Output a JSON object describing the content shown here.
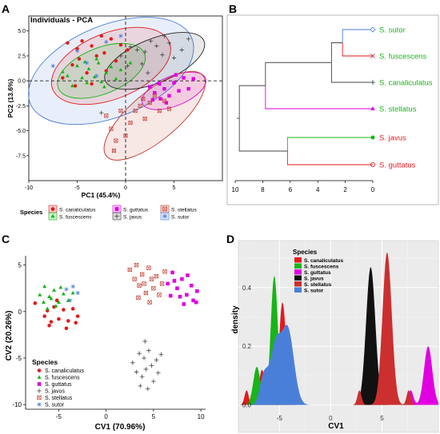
{
  "panels": {
    "A": {
      "letter": "A",
      "title": "Individuals - PCA",
      "xlabel": "PC1 (45.4%)",
      "ylabel": "PC2 (13.6%)"
    },
    "B": {
      "letter": "B"
    },
    "C": {
      "letter": "C",
      "xlabel": "CV1 (70.96%)",
      "ylabel": "CV2 (20.26%)"
    },
    "D": {
      "letter": "D",
      "xlabel": "CV1",
      "ylabel": "density"
    }
  },
  "legend_titles": {
    "A": "Species",
    "C": "Species",
    "D": "Species"
  },
  "species": [
    {
      "name": "S. canaliculatus",
      "color": "#e31a1c",
      "marker": "circle"
    },
    {
      "name": "S. fuscescens",
      "color": "#18b418",
      "marker": "triangle"
    },
    {
      "name": "S. guttatus",
      "color": "#e000e0",
      "marker": "square"
    },
    {
      "name": "S. javus",
      "color": "#444444",
      "marker": "plus"
    },
    {
      "name": "S. stellatus",
      "color": "#c0392b",
      "marker": "boxx"
    },
    {
      "name": "S. sutor",
      "color": "#4a7fd9",
      "marker": "asterisk"
    }
  ],
  "chart_data": [
    {
      "panel": "A",
      "type": "scatter",
      "title": "Individuals - PCA",
      "xlabel": "PC1 (45.4%)",
      "ylabel": "PC2 (13.6%)",
      "xlim": [
        -10,
        10
      ],
      "ylim": [
        -10,
        6.5
      ],
      "xticks": [
        -10,
        -5,
        0,
        5
      ],
      "yticks": [
        5,
        2.5,
        0,
        -2.5,
        -5,
        -7.5
      ],
      "ytick_labels": [
        "5.0",
        "2.5",
        "0.0",
        "-2.5",
        "-5.0",
        "-7.5"
      ],
      "legend_position": "bottom",
      "ellipses": [
        {
          "species": "S. sutor",
          "cx": -1.5,
          "cy": 1.0,
          "rx": 9.0,
          "ry": 4.6,
          "angle": 22
        },
        {
          "species": "S. canaliculatus",
          "cx": -1.5,
          "cy": 1.5,
          "rx": 6.5,
          "ry": 3.3,
          "angle": 22
        },
        {
          "species": "S. fuscescens",
          "cx": -2.5,
          "cy": 1.0,
          "rx": 4.8,
          "ry": 2.3,
          "angle": 22
        },
        {
          "species": "S. javus",
          "cx": 3.0,
          "cy": 2.0,
          "rx": 5.5,
          "ry": 2.2,
          "angle": 22
        },
        {
          "species": "S. guttatus",
          "cx": 5.0,
          "cy": -1.0,
          "rx": 3.5,
          "ry": 1.5,
          "angle": 22
        },
        {
          "species": "S. stellatus",
          "cx": 3.0,
          "cy": -3.5,
          "rx": 6.5,
          "ry": 2.4,
          "angle": 40
        }
      ],
      "series": [
        {
          "name": "S. canaliculatus",
          "points": [
            [
              -6,
              3.8
            ],
            [
              -5,
              3.2
            ],
            [
              -4.5,
              4.0
            ],
            [
              -3.5,
              3.5
            ],
            [
              -2.5,
              4.5
            ],
            [
              -1.5,
              4.2
            ],
            [
              -0.5,
              3.6
            ],
            [
              -3,
              2.5
            ],
            [
              -5.5,
              1.6
            ],
            [
              -2,
              1.0
            ],
            [
              -4,
              0.8
            ],
            [
              -6.5,
              0.3
            ],
            [
              -3.5,
              -0.3
            ],
            [
              -2.2,
              2.8
            ],
            [
              0.2,
              3.1
            ],
            [
              -4.8,
              2.2
            ],
            [
              -1,
              2.0
            ],
            [
              -5.2,
              -0.5
            ]
          ]
        },
        {
          "name": "S. fuscescens",
          "points": [
            [
              -6,
              0.5
            ],
            [
              -5.5,
              -0.5
            ],
            [
              -5,
              1.5
            ],
            [
              -4.5,
              0.3
            ],
            [
              -4,
              -0.2
            ],
            [
              -3.8,
              1.2
            ],
            [
              -3.2,
              0.4
            ],
            [
              -2.8,
              1.8
            ],
            [
              -2.5,
              -0.1
            ],
            [
              -2,
              0.8
            ],
            [
              -1.5,
              1.4
            ],
            [
              -1,
              0.2
            ],
            [
              -0.5,
              1.1
            ],
            [
              0.5,
              1.8
            ],
            [
              -3,
              2.2
            ],
            [
              -4.2,
              1.9
            ],
            [
              -6.5,
              0.9
            ],
            [
              -2.2,
              -0.6
            ]
          ]
        },
        {
          "name": "S. guttatus",
          "points": [
            [
              2.5,
              -0.6
            ],
            [
              3,
              -1.2
            ],
            [
              3.5,
              -0.3
            ],
            [
              4,
              -0.8
            ],
            [
              4.5,
              -1.5
            ],
            [
              5,
              -0.2
            ],
            [
              5.5,
              -1.0
            ],
            [
              6,
              0.3
            ],
            [
              6.5,
              -0.8
            ],
            [
              4.2,
              -2.2
            ],
            [
              3.6,
              -1.8
            ],
            [
              7,
              0.2
            ],
            [
              5.2,
              0.6
            ],
            [
              2.8,
              -1.9
            ]
          ]
        },
        {
          "name": "S. javus",
          "points": [
            [
              -0.5,
              2.5
            ],
            [
              0.5,
              3.4
            ],
            [
              1.2,
              3.1
            ],
            [
              2,
              2.9
            ],
            [
              2.6,
              4.0
            ],
            [
              3.2,
              3.5
            ],
            [
              3.8,
              2.6
            ],
            [
              4.5,
              3.8
            ],
            [
              5,
              2.3
            ],
            [
              5.8,
              3.1
            ],
            [
              6.5,
              4.2
            ],
            [
              1.7,
              1.7
            ],
            [
              0.2,
              1.5
            ],
            [
              4,
              4.5
            ],
            [
              2.3,
              0.8
            ],
            [
              -2.5,
              -3.2
            ]
          ]
        },
        {
          "name": "S. stellatus",
          "points": [
            [
              -2,
              -3.5
            ],
            [
              -1.5,
              -4.8
            ],
            [
              -1,
              -6.0
            ],
            [
              -0.5,
              -3.0
            ],
            [
              0,
              -5.5
            ],
            [
              0.5,
              -4.2
            ],
            [
              1,
              -3.0
            ],
            [
              1.5,
              -2.5
            ],
            [
              2,
              -3.8
            ],
            [
              2.5,
              -2.2
            ],
            [
              3,
              -1.5
            ],
            [
              3.5,
              -3.0
            ],
            [
              4,
              -2.0
            ],
            [
              4.5,
              -2.8
            ],
            [
              -1.2,
              -7.0
            ],
            [
              1.8,
              -1.8
            ]
          ]
        },
        {
          "name": "S. sutor",
          "points": [
            [
              -7.5,
              1.5
            ],
            [
              -5,
              3.0
            ],
            [
              -4,
              1.8
            ],
            [
              -2,
              3.9
            ],
            [
              -3,
              0.5
            ],
            [
              -0.5,
              4.5
            ]
          ]
        }
      ]
    },
    {
      "panel": "B",
      "type": "dendrogram",
      "xlim": [
        10,
        0
      ],
      "xticks": [
        10,
        8,
        6,
        4,
        2,
        0
      ],
      "leaves": [
        {
          "label": "S. sutor",
          "color": "#18b418",
          "marker": "diamond"
        },
        {
          "label": "S. fuscescens",
          "color": "#18b418",
          "marker": "x"
        },
        {
          "label": "S. canaliculatus",
          "color": "#18b418",
          "marker": "plus"
        },
        {
          "label": "S. stellatus",
          "color": "#18b418",
          "marker": "triangle"
        },
        {
          "label": "S. javus",
          "color": "#e31a1c",
          "marker": "circle"
        },
        {
          "label": "S. guttatus",
          "color": "#e31a1c",
          "marker": "ring"
        }
      ],
      "merges": [
        {
          "a": 0,
          "b": 1,
          "height": 2.2,
          "colors": [
            "#4a7fd9",
            "#e31a1c"
          ]
        },
        {
          "a": "m0",
          "b": 2,
          "height": 3.0,
          "colors": [
            "#444444",
            "#444444"
          ]
        },
        {
          "a": "m1",
          "b": 3,
          "height": 7.8,
          "colors": [
            "#444444",
            "#e000e0"
          ]
        },
        {
          "a": 4,
          "b": 5,
          "height": 6.2,
          "colors": [
            "#18b418",
            "#e31a1c"
          ]
        },
        {
          "a": "m2",
          "b": "m3",
          "height": 9.7,
          "colors": [
            "#444444",
            "#444444"
          ]
        }
      ]
    },
    {
      "panel": "C",
      "type": "scatter",
      "xlabel": "CV1 (70.96%)",
      "ylabel": "CV2 (20.26%)",
      "xlim": [
        -8.5,
        10.5
      ],
      "ylim": [
        -10.5,
        6
      ],
      "xticks": [
        -5,
        0,
        5,
        10
      ],
      "yticks": [
        5,
        0,
        -5,
        -10
      ],
      "legend_position": "bottom-left",
      "series": [
        {
          "name": "S. canaliculatus",
          "points": [
            [
              -7.5,
              0.9
            ],
            [
              -6.5,
              -0.5
            ],
            [
              -6,
              -1.5
            ],
            [
              -5.5,
              0.5
            ],
            [
              -5,
              -0.8
            ],
            [
              -4.5,
              0.2
            ],
            [
              -4,
              -1.0
            ],
            [
              -3.5,
              0.3
            ],
            [
              -3,
              -0.5
            ],
            [
              -5.2,
              1.2
            ],
            [
              -6.2,
              0.1
            ],
            [
              -4.2,
              -1.8
            ],
            [
              -3.2,
              -1.2
            ],
            [
              -5.8,
              -1.1
            ]
          ]
        },
        {
          "name": "S. fuscescens",
          "points": [
            [
              -7,
              1.8
            ],
            [
              -6.5,
              2.7
            ],
            [
              -6,
              1.6
            ],
            [
              -5.5,
              2.3
            ],
            [
              -5,
              1.0
            ],
            [
              -4.5,
              1.9
            ],
            [
              -4,
              1.2
            ],
            [
              -3.5,
              2.0
            ],
            [
              -6.2,
              0.3
            ],
            [
              -5.8,
              1.4
            ],
            [
              -4.8,
              2.6
            ],
            [
              -5.3,
              0.6
            ],
            [
              -6.6,
              1.0
            ]
          ]
        },
        {
          "name": "S. guttatus",
          "points": [
            [
              6.5,
              3.0
            ],
            [
              7,
              4.2
            ],
            [
              7.5,
              2.5
            ],
            [
              8,
              3.5
            ],
            [
              8.5,
              1.8
            ],
            [
              9,
              2.8
            ],
            [
              9.2,
              1.2
            ],
            [
              9.6,
              2.2
            ],
            [
              8.2,
              0.8
            ],
            [
              7.8,
              1.6
            ],
            [
              6.8,
              1.7
            ],
            [
              9.5,
              1.0
            ],
            [
              8.6,
              3.9
            ],
            [
              7.2,
              3.3
            ]
          ]
        },
        {
          "name": "S. javus",
          "points": [
            [
              2.8,
              -5.5
            ],
            [
              3.2,
              -6.5
            ],
            [
              3.5,
              -4.5
            ],
            [
              3.8,
              -7.0
            ],
            [
              4,
              -5.0
            ],
            [
              4.2,
              -6.2
            ],
            [
              4.5,
              -4.2
            ],
            [
              4.8,
              -5.8
            ],
            [
              5,
              -7.5
            ],
            [
              5.3,
              -5.2
            ],
            [
              5.5,
              -6.6
            ],
            [
              3.6,
              -8.0
            ],
            [
              4.4,
              -8.3
            ],
            [
              4.1,
              -3.2
            ],
            [
              5.8,
              -4.6
            ]
          ]
        },
        {
          "name": "S. stellatus",
          "points": [
            [
              2.5,
              4.5
            ],
            [
              3,
              3.5
            ],
            [
              3.2,
              5.0
            ],
            [
              3.5,
              2.8
            ],
            [
              3.8,
              4.0
            ],
            [
              4,
              3.0
            ],
            [
              4.2,
              2.0
            ],
            [
              4.5,
              4.7
            ],
            [
              4.8,
              3.5
            ],
            [
              5,
              2.5
            ],
            [
              5.3,
              3.8
            ],
            [
              5.6,
              1.8
            ],
            [
              5.9,
              3.0
            ],
            [
              6.2,
              4.3
            ],
            [
              3.4,
              1.5
            ],
            [
              4.6,
              1.0
            ]
          ]
        },
        {
          "name": "S. sutor",
          "points": [
            [
              -4.2,
              2.4
            ],
            [
              -3.5,
              2.7
            ],
            [
              -3,
              2.0
            ],
            [
              -3.8,
              1.2
            ]
          ]
        }
      ]
    },
    {
      "panel": "D",
      "type": "area",
      "xlabel": "CV1",
      "ylabel": "density",
      "xlim": [
        -9,
        10.5
      ],
      "ylim": [
        -0.02,
        0.56
      ],
      "xticks": [
        -5,
        0,
        5
      ],
      "yticks": [
        0.0,
        0.2,
        0.4
      ],
      "ytick_labels": [
        "0.0",
        "0.2",
        "0.4"
      ],
      "legend_position": "top-left",
      "series": [
        {
          "name": "S. canaliculatus",
          "color": "#e31a1c",
          "peaks": [
            [
              -4.7,
              0.35,
              0.35
            ],
            [
              -6.7,
              0.12,
              0.3
            ],
            [
              -8.2,
              0.05,
              0.2
            ]
          ]
        },
        {
          "name": "S. fuscescens",
          "color": "#18b418",
          "peaks": [
            [
              -5.5,
              0.44,
              0.35
            ],
            [
              -7.2,
              0.13,
              0.35
            ]
          ]
        },
        {
          "name": "S. guttatus",
          "color": "#e000e0",
          "peaks": [
            [
              9.5,
              0.2,
              0.4
            ],
            [
              7.8,
              0.05,
              0.25
            ]
          ]
        },
        {
          "name": "S. javus",
          "color": "#111111",
          "peaks": [
            [
              3.9,
              0.47,
              0.45
            ]
          ]
        },
        {
          "name": "S. stellatus",
          "color": "#cc2f2f",
          "peaks": [
            [
              5.5,
              0.52,
              0.45
            ],
            [
              2.8,
              0.05,
              0.2
            ],
            [
              7.6,
              0.05,
              0.2
            ]
          ]
        },
        {
          "name": "S. sutor",
          "color": "#4a7fd9",
          "peaks": [
            [
              -5.4,
              0.19,
              0.5
            ],
            [
              -4.2,
              0.26,
              0.6
            ],
            [
              -6.5,
              0.1,
              0.4
            ]
          ]
        }
      ]
    }
  ]
}
